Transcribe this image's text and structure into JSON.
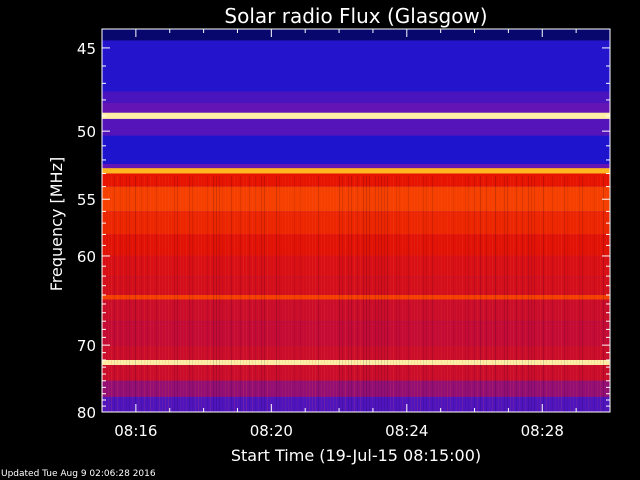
{
  "chart_data": {
    "type": "heatmap",
    "title": "Solar radio Flux (Glasgow)",
    "xlabel": "Start Time (19-Jul-15 08:15:00)",
    "ylabel": "Frequency [MHz]",
    "x_ticks": [
      "08:16",
      "08:20",
      "08:24",
      "08:28"
    ],
    "x_tick_minutes": [
      1,
      5,
      9,
      13
    ],
    "xlim_minutes": [
      0,
      15
    ],
    "y_ticks": [
      45,
      50,
      55,
      60,
      70,
      80
    ],
    "ylim_mhz": [
      44,
      80
    ],
    "y_scale": "reciprocal",
    "colormap": "blue-purple-red-yellow-white",
    "bands": [
      {
        "f0": 44.0,
        "f1": 44.6,
        "level": 0.05
      },
      {
        "f0": 44.6,
        "f1": 47.5,
        "level": 0.18
      },
      {
        "f0": 47.5,
        "f1": 48.2,
        "level": 0.25
      },
      {
        "f0": 48.2,
        "f1": 48.8,
        "level": 0.3
      },
      {
        "f0": 48.8,
        "f1": 49.2,
        "level": 0.97
      },
      {
        "f0": 49.2,
        "f1": 50.3,
        "level": 0.27
      },
      {
        "f0": 50.3,
        "f1": 52.3,
        "level": 0.17
      },
      {
        "f0": 52.3,
        "f1": 52.6,
        "level": 0.3
      },
      {
        "f0": 52.6,
        "f1": 53.0,
        "level": 0.88
      },
      {
        "f0": 53.0,
        "f1": 54.0,
        "level": 0.62
      },
      {
        "f0": 54.0,
        "f1": 56.0,
        "level": 0.72
      },
      {
        "f0": 56.0,
        "f1": 58.0,
        "level": 0.66
      },
      {
        "f0": 58.0,
        "f1": 60.0,
        "level": 0.6
      },
      {
        "f0": 60.0,
        "f1": 62.0,
        "level": 0.56
      },
      {
        "f0": 62.0,
        "f1": 64.0,
        "level": 0.54
      },
      {
        "f0": 64.0,
        "f1": 64.5,
        "level": 0.72
      },
      {
        "f0": 64.5,
        "f1": 67.0,
        "level": 0.5
      },
      {
        "f0": 67.0,
        "f1": 70.0,
        "level": 0.47
      },
      {
        "f0": 70.0,
        "f1": 72.0,
        "level": 0.5
      },
      {
        "f0": 72.0,
        "f1": 72.7,
        "level": 0.97
      },
      {
        "f0": 72.7,
        "f1": 75.0,
        "level": 0.5
      },
      {
        "f0": 75.0,
        "f1": 77.5,
        "level": 0.38
      },
      {
        "f0": 77.5,
        "f1": 80.0,
        "level": 0.26
      }
    ],
    "grid": false
  },
  "footer": {
    "updated": "Updated Tue Aug  9 02:06:28 2016"
  },
  "colors": {
    "background": "#000000",
    "text": "#ffffff"
  }
}
